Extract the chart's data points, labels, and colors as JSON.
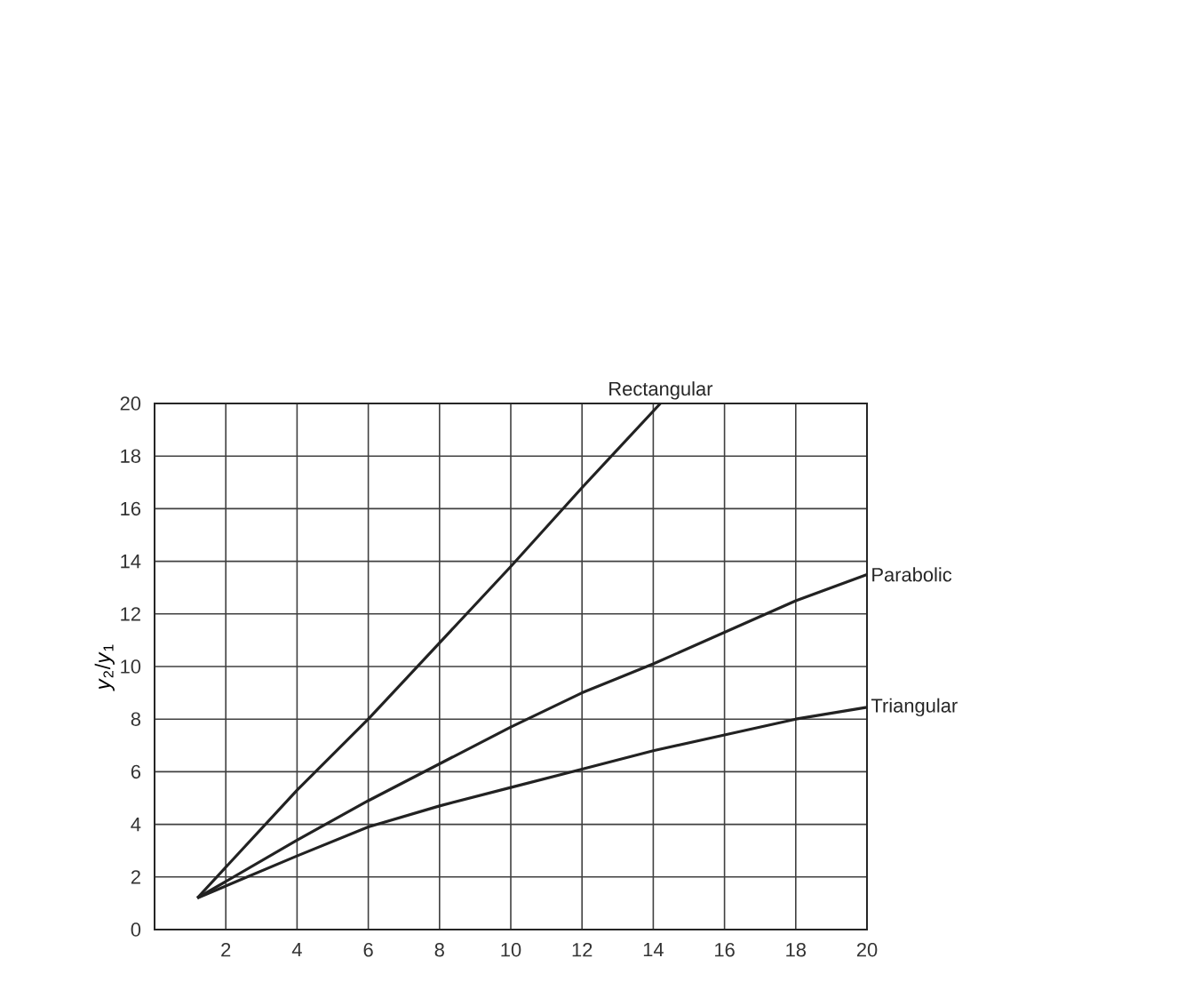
{
  "chart_data": {
    "type": "line",
    "ylabel": "*y*$_{2}$/*y*$_{1}$",
    "xlim": [
      0,
      20
    ],
    "ylim": [
      0,
      20
    ],
    "xticks": [
      2,
      4,
      6,
      8,
      10,
      12,
      14,
      16,
      18,
      20
    ],
    "yticks": [
      0,
      2,
      4,
      6,
      8,
      10,
      12,
      14,
      16,
      18,
      20
    ],
    "grid": true,
    "legend": false,
    "marker": "none",
    "line_style": "solid",
    "series": [
      {
        "name": "Rectangular",
        "color": "#222222",
        "x": [
          1.2,
          4,
          6,
          8,
          10,
          12,
          14.2
        ],
        "values": [
          1.2,
          5.3,
          8,
          10.9,
          13.8,
          16.8,
          20
        ]
      },
      {
        "name": "Parabolic",
        "color": "#222222",
        "x": [
          1.2,
          4,
          6,
          8,
          10,
          12,
          14,
          16,
          18,
          20
        ],
        "values": [
          1.2,
          3.4,
          4.9,
          6.3,
          7.7,
          9.0,
          10.1,
          11.3,
          12.5,
          13.5
        ]
      },
      {
        "name": "Triangular",
        "color": "#222222",
        "x": [
          1.2,
          4,
          6,
          8,
          10,
          12,
          14,
          16,
          18,
          20
        ],
        "values": [
          1.2,
          2.8,
          3.9,
          4.7,
          5.4,
          6.1,
          6.8,
          7.4,
          8.0,
          8.45
        ]
      }
    ]
  }
}
